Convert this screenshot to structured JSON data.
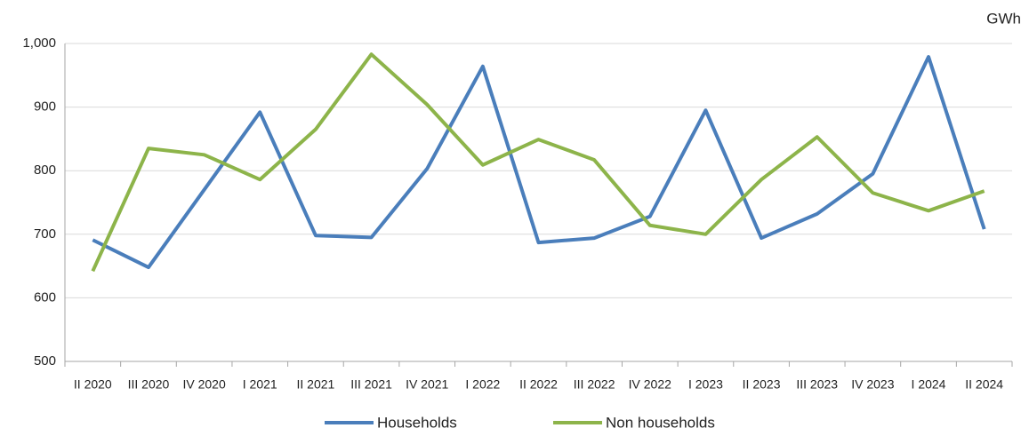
{
  "chart_data": {
    "type": "line",
    "unit": "GWh",
    "categories": [
      "II 2020",
      "III 2020",
      "IV 2020",
      "I 2021",
      "II 2021",
      "III 2021",
      "IV 2021",
      "I 2022",
      "II 2022",
      "III 2022",
      "IV 2022",
      "I 2023",
      "II 2023",
      "III 2023",
      "IV 2023",
      "I 2024",
      "II 2024"
    ],
    "series": [
      {
        "name": "Households",
        "color": "#4a7ebb",
        "values": [
          691,
          648,
          770,
          892,
          698,
          695,
          803,
          964,
          687,
          694,
          728,
          895,
          694,
          732,
          795,
          979,
          708
        ]
      },
      {
        "name": "Non households",
        "color": "#8db44a",
        "values": [
          642,
          835,
          825,
          786,
          865,
          983,
          904,
          809,
          849,
          817,
          714,
          700,
          786,
          853,
          765,
          737,
          768
        ]
      }
    ],
    "ylim": [
      500,
      1000
    ],
    "yticks": [
      500,
      600,
      700,
      800,
      900,
      {
        "value": 1000,
        "label": "1,000"
      }
    ],
    "grid": true
  }
}
